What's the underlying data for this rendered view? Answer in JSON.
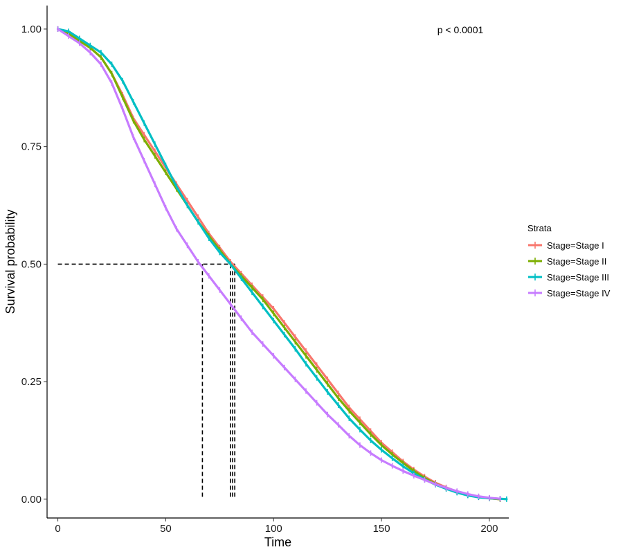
{
  "chart_data": {
    "type": "line",
    "xlabel": "Time",
    "ylabel": "Survival probability",
    "xlim": [
      -5,
      209
    ],
    "ylim": [
      -0.04,
      1.05
    ],
    "x_ticks": [
      0,
      50,
      100,
      150,
      200
    ],
    "y_ticks": [
      0.0,
      0.25,
      0.5,
      0.75,
      1.0
    ],
    "x_tick_labels": [
      "0",
      "50",
      "100",
      "150",
      "200"
    ],
    "y_tick_labels": [
      "0.00",
      "0.25",
      "0.50",
      "0.75",
      "1.00"
    ],
    "annotation": "p < 0.0001",
    "legend_title": "Strata",
    "legend_position": "right",
    "grid": false,
    "median_line_y": 0.5,
    "series": [
      {
        "name": "Stage=Stage I",
        "color": "#F8766D",
        "median_x": 82,
        "x": [
          0,
          5,
          10,
          15,
          20,
          25,
          30,
          35,
          40,
          45,
          50,
          55,
          60,
          65,
          70,
          75,
          80,
          85,
          90,
          95,
          100,
          105,
          110,
          115,
          120,
          125,
          130,
          135,
          140,
          145,
          150,
          155,
          160,
          165,
          170,
          175,
          180,
          185,
          190,
          195,
          200,
          205
        ],
        "values": [
          1.0,
          0.99,
          0.975,
          0.96,
          0.94,
          0.905,
          0.86,
          0.81,
          0.775,
          0.74,
          0.705,
          0.67,
          0.635,
          0.6,
          0.565,
          0.535,
          0.505,
          0.48,
          0.455,
          0.43,
          0.405,
          0.375,
          0.345,
          0.315,
          0.285,
          0.255,
          0.225,
          0.195,
          0.17,
          0.145,
          0.12,
          0.1,
          0.08,
          0.063,
          0.048,
          0.035,
          0.025,
          0.016,
          0.009,
          0.005,
          0.002,
          0.0
        ]
      },
      {
        "name": "Stage=Stage II",
        "color": "#7CAE00",
        "median_x": 81,
        "x": [
          0,
          5,
          10,
          15,
          20,
          25,
          30,
          35,
          40,
          45,
          50,
          55,
          60,
          65,
          70,
          75,
          80,
          85,
          90,
          95,
          100,
          105,
          110,
          115,
          120,
          125,
          130,
          135,
          140,
          145,
          150,
          155,
          160,
          165,
          170,
          175,
          180,
          185,
          190,
          195,
          200,
          205
        ],
        "values": [
          1.0,
          0.99,
          0.975,
          0.96,
          0.94,
          0.905,
          0.855,
          0.805,
          0.765,
          0.73,
          0.695,
          0.66,
          0.625,
          0.59,
          0.56,
          0.53,
          0.5,
          0.475,
          0.45,
          0.425,
          0.395,
          0.365,
          0.335,
          0.305,
          0.275,
          0.245,
          0.215,
          0.188,
          0.163,
          0.138,
          0.115,
          0.095,
          0.077,
          0.06,
          0.045,
          0.033,
          0.023,
          0.015,
          0.009,
          0.005,
          0.002,
          0.0
        ]
      },
      {
        "name": "Stage=Stage III",
        "color": "#00BFC4",
        "median_x": 80,
        "x": [
          0,
          5,
          10,
          15,
          20,
          25,
          30,
          35,
          40,
          45,
          50,
          55,
          60,
          65,
          70,
          75,
          80,
          85,
          90,
          95,
          100,
          105,
          110,
          115,
          120,
          125,
          130,
          135,
          140,
          145,
          150,
          155,
          160,
          165,
          170,
          175,
          180,
          185,
          190,
          195,
          200,
          205,
          208
        ],
        "values": [
          1.0,
          0.995,
          0.98,
          0.965,
          0.95,
          0.925,
          0.89,
          0.845,
          0.8,
          0.755,
          0.71,
          0.665,
          0.625,
          0.59,
          0.555,
          0.525,
          0.5,
          0.47,
          0.44,
          0.41,
          0.38,
          0.35,
          0.32,
          0.288,
          0.258,
          0.228,
          0.2,
          0.172,
          0.148,
          0.125,
          0.105,
          0.087,
          0.07,
          0.055,
          0.042,
          0.031,
          0.022,
          0.014,
          0.008,
          0.004,
          0.002,
          0.001,
          0.0
        ]
      },
      {
        "name": "Stage=Stage IV",
        "color": "#C77CFF",
        "median_x": 67,
        "x": [
          0,
          5,
          10,
          15,
          20,
          25,
          30,
          35,
          40,
          45,
          50,
          55,
          60,
          65,
          70,
          75,
          80,
          85,
          90,
          95,
          100,
          105,
          110,
          115,
          120,
          125,
          130,
          135,
          140,
          145,
          150,
          155,
          160,
          165,
          170,
          175,
          180,
          185,
          190,
          195,
          200,
          205
        ],
        "values": [
          1.0,
          0.985,
          0.97,
          0.95,
          0.925,
          0.885,
          0.83,
          0.77,
          0.72,
          0.67,
          0.62,
          0.575,
          0.54,
          0.505,
          0.475,
          0.445,
          0.415,
          0.385,
          0.355,
          0.33,
          0.305,
          0.28,
          0.255,
          0.23,
          0.205,
          0.18,
          0.158,
          0.135,
          0.115,
          0.098,
          0.083,
          0.071,
          0.06,
          0.05,
          0.041,
          0.032,
          0.024,
          0.017,
          0.011,
          0.006,
          0.003,
          0.001
        ]
      }
    ]
  }
}
